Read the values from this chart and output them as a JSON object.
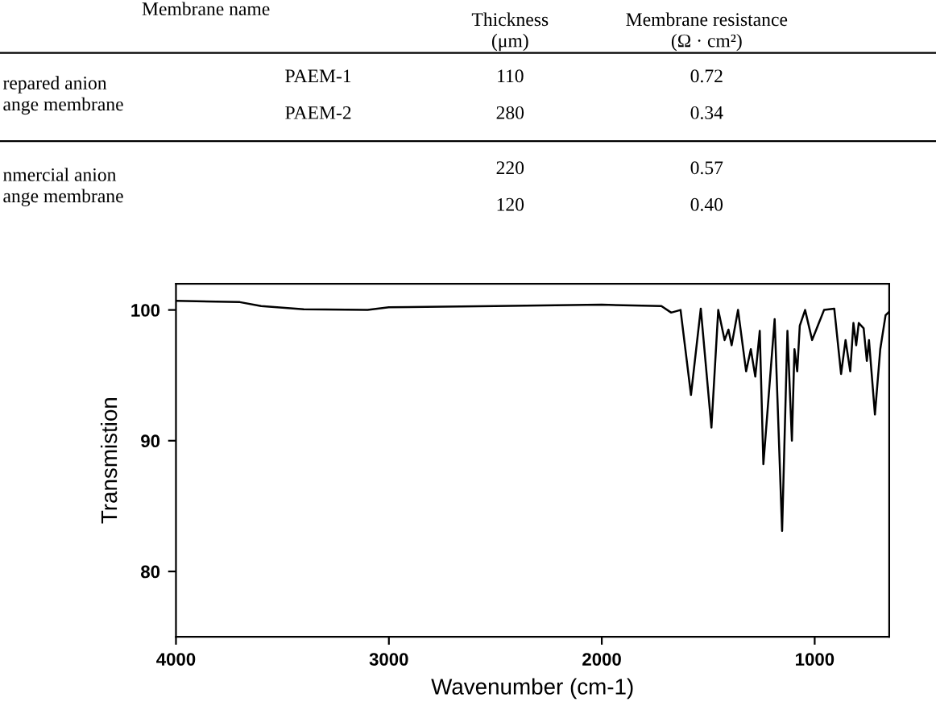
{
  "chart_data": {
    "type": "line",
    "xlabel": "Wavenumber (cm-1)",
    "ylabel": "Transmistion",
    "x": [
      4000,
      3700,
      3600,
      3400,
      3100,
      3000,
      2500,
      2000,
      1720,
      1674,
      1630,
      1581,
      1535,
      1485,
      1453,
      1423,
      1405,
      1390,
      1360,
      1322,
      1300,
      1279,
      1258,
      1241,
      1188,
      1153,
      1128,
      1107,
      1095,
      1082,
      1070,
      1045,
      1012,
      956,
      908,
      876,
      855,
      833,
      818,
      805,
      793,
      770,
      755,
      745,
      717,
      692,
      667,
      654
    ],
    "series": [
      {
        "color": "#000000",
        "values": [
          100.7,
          100.6,
          100.3,
          100.05,
          100.0,
          100.2,
          100.3,
          100.4,
          100.3,
          99.8,
          100.0,
          93.5,
          100.1,
          91.0,
          100.0,
          97.7,
          98.5,
          97.3,
          100.0,
          95.3,
          97.0,
          94.9,
          98.4,
          88.2,
          99.3,
          83.1,
          98.4,
          90.0,
          97.0,
          95.3,
          98.8,
          100.0,
          97.7,
          100.0,
          100.1,
          95.1,
          97.7,
          95.3,
          99.0,
          97.3,
          99.0,
          98.6,
          96.1,
          97.7,
          92.0,
          97.0,
          99.6,
          99.8
        ]
      }
    ],
    "xlim": [
      4000,
      650
    ],
    "ylim": [
      75,
      102
    ],
    "xticks": [
      4000,
      3000,
      2000,
      1000
    ],
    "yticks": [
      80,
      90,
      100
    ],
    "grid": false,
    "legend": false,
    "marker": "none",
    "line_style": "solid",
    "annotations": [
      "Membrane name",
      "Thickness\n(μm)",
      "Membrane resistance\n(Ω · cm²)",
      "repared anion\nange membrane",
      "PAEM-1",
      "110",
      "0.72",
      "PAEM-2",
      "280",
      "0.34",
      "nmercial anion\nange membrane",
      "220",
      "0.57",
      "120",
      "0.40"
    ]
  }
}
